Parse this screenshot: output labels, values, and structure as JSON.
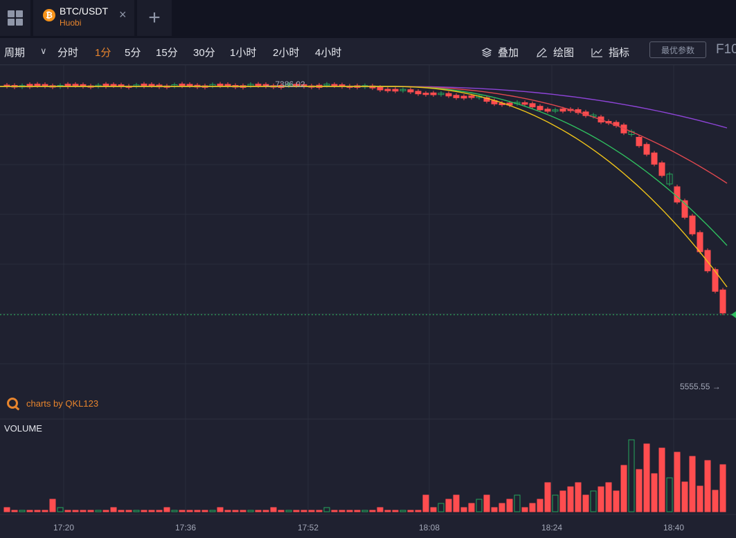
{
  "tabs": [
    {
      "symbol": "BTC/USDT",
      "exchange": "Huobi",
      "coin_icon": "bitcoin-icon"
    }
  ],
  "toolbar": {
    "period_label": "周期",
    "intervals": [
      {
        "label": "分时",
        "active": false
      },
      {
        "label": "1分",
        "active": true
      },
      {
        "label": "5分",
        "active": false
      },
      {
        "label": "15分",
        "active": false
      },
      {
        "label": "30分",
        "active": false
      },
      {
        "label": "1小时",
        "active": false
      },
      {
        "label": "2小时",
        "active": false
      },
      {
        "label": "4小时",
        "active": false
      }
    ],
    "overlay_label": "叠加",
    "draw_label": "绘图",
    "indicator_label": "指标",
    "params_button": "最优参数",
    "f10_label": "F10"
  },
  "chart": {
    "watermark": "charts by QKL123",
    "high_marker": "7386.02",
    "low_marker": "5555.55",
    "volume_label": "VOLUME",
    "time_labels": [
      "17:20",
      "17:36",
      "17:52",
      "18:08",
      "18:24",
      "18:40"
    ],
    "colors": {
      "up": "#26a65b",
      "down": "#ff4d4f",
      "accent": "#e8852d",
      "ma_yellow": "#f0c419",
      "ma_green": "#2fbf5f",
      "ma_red": "#e0484f",
      "ma_purple": "#8e44d8"
    }
  },
  "chart_data": {
    "type": "candlestick",
    "symbol": "BTC/USDT",
    "interval": "1分",
    "x": [
      "17:20",
      "17:36",
      "17:52",
      "18:08",
      "18:24",
      "18:40"
    ],
    "price_markers": {
      "high": 7386.02,
      "low": 5555.55
    },
    "series": [
      {
        "name": "VOLUME",
        "trend": "spike near end"
      }
    ]
  }
}
